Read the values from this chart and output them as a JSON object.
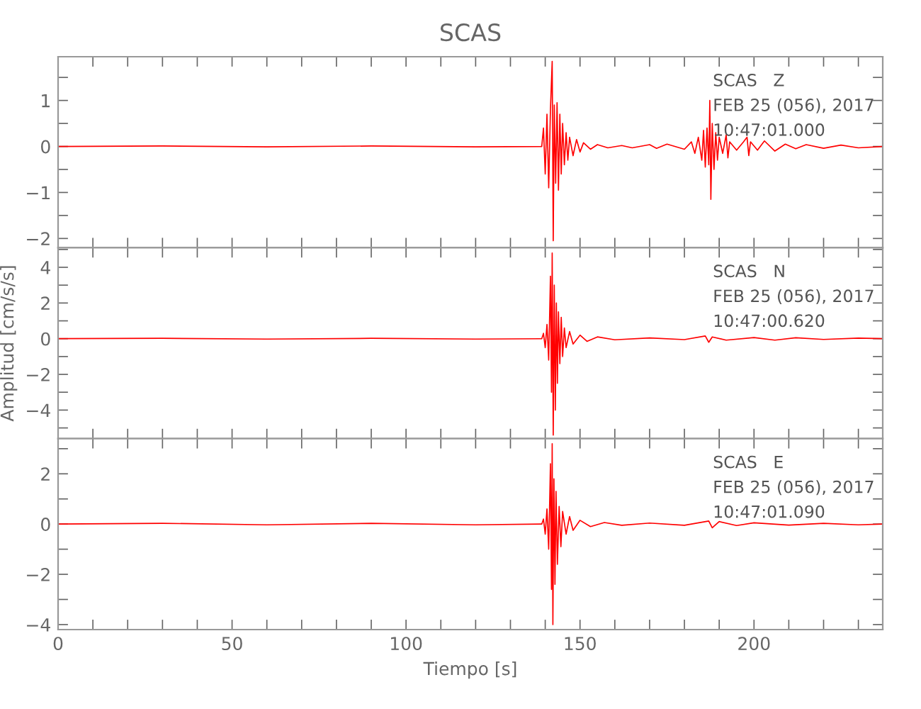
{
  "chart_data": [
    {
      "type": "line",
      "title": "SCAS",
      "tick_labels": "y",
      "xlim": [
        0,
        237
      ],
      "ylim": [
        -2.2,
        1.95
      ],
      "xticks": [
        0,
        {
          "value": 10,
          "label": null
        },
        {
          "value": 20,
          "label": null
        },
        {
          "value": 30,
          "label": null
        },
        {
          "value": 40,
          "label": null
        },
        50,
        {
          "value": 60,
          "label": null
        },
        {
          "value": 70,
          "label": null
        },
        {
          "value": 80,
          "label": null
        },
        {
          "value": 90,
          "label": null
        },
        100,
        {
          "value": 110,
          "label": null
        },
        {
          "value": 120,
          "label": null
        },
        {
          "value": 130,
          "label": null
        },
        {
          "value": 140,
          "label": null
        },
        150,
        {
          "value": 160,
          "label": null
        },
        {
          "value": 170,
          "label": null
        },
        {
          "value": 180,
          "label": null
        },
        {
          "value": 190,
          "label": null
        },
        200,
        {
          "value": 210,
          "label": null
        },
        {
          "value": 220,
          "label": null
        },
        {
          "value": 230,
          "label": null
        }
      ],
      "yticks": [
        -2,
        {
          "value": -1.5,
          "label": null
        },
        -1,
        {
          "value": -0.5,
          "label": null
        },
        0,
        {
          "value": 0.5,
          "label": null
        },
        1,
        {
          "value": 1.5,
          "label": null
        }
      ],
      "annotations": [
        "SCAS   Z",
        "FEB 25 (056), 2017",
        "10:47:01.000"
      ],
      "series": [
        {
          "color": "#ff0000",
          "x": [
            0,
            30,
            60,
            90,
            120,
            139,
            139.5,
            140,
            140.5,
            141,
            141.5,
            142,
            142.3,
            142.6,
            143,
            143.4,
            143.8,
            144.2,
            144.6,
            145,
            145.5,
            146,
            146.5,
            147,
            148,
            149,
            150,
            151,
            153,
            155,
            158,
            162,
            165,
            170,
            172,
            175,
            180,
            182,
            183,
            184,
            185,
            185.5,
            186,
            186.5,
            187,
            187.3,
            187.6,
            188,
            188.5,
            189,
            189.5,
            190,
            191,
            192,
            192.5,
            193,
            195,
            197,
            198,
            198.5,
            199,
            201,
            203,
            206,
            209,
            212,
            215,
            220,
            225,
            230,
            237
          ],
          "values": [
            0,
            0.01,
            -0.01,
            0.01,
            -0.01,
            0,
            0.4,
            -0.6,
            0.7,
            -0.9,
            0.8,
            1.85,
            -2.05,
            0.9,
            -0.8,
            0.95,
            -0.95,
            0.7,
            -0.6,
            0.5,
            -0.4,
            0.3,
            -0.3,
            0.2,
            -0.2,
            0.15,
            -0.12,
            0.08,
            -0.06,
            0.04,
            -0.03,
            0.02,
            -0.03,
            0.04,
            -0.04,
            0.05,
            -0.06,
            0.1,
            -0.15,
            0.2,
            -0.3,
            0.35,
            -0.45,
            0.4,
            -0.4,
            1.0,
            -1.15,
            0.5,
            -0.5,
            0.3,
            -0.3,
            0.2,
            -0.15,
            0.25,
            -0.25,
            0.1,
            -0.08,
            0.1,
            0.2,
            -0.2,
            0.1,
            -0.08,
            0.12,
            -0.1,
            0.05,
            -0.05,
            0.04,
            -0.04,
            0.03,
            -0.03,
            0
          ]
        }
      ]
    },
    {
      "type": "line",
      "ylabel": "Amplitud [cm/s/s]",
      "tick_labels": "y",
      "xlim": [
        0,
        237
      ],
      "ylim": [
        -5.6,
        5.1
      ],
      "xticks": [
        0,
        {
          "value": 10,
          "label": null
        },
        {
          "value": 20,
          "label": null
        },
        {
          "value": 30,
          "label": null
        },
        {
          "value": 40,
          "label": null
        },
        50,
        {
          "value": 60,
          "label": null
        },
        {
          "value": 70,
          "label": null
        },
        {
          "value": 80,
          "label": null
        },
        {
          "value": 90,
          "label": null
        },
        100,
        {
          "value": 110,
          "label": null
        },
        {
          "value": 120,
          "label": null
        },
        {
          "value": 130,
          "label": null
        },
        {
          "value": 140,
          "label": null
        },
        150,
        {
          "value": 160,
          "label": null
        },
        {
          "value": 170,
          "label": null
        },
        {
          "value": 180,
          "label": null
        },
        {
          "value": 190,
          "label": null
        },
        200,
        {
          "value": 210,
          "label": null
        },
        {
          "value": 220,
          "label": null
        },
        {
          "value": 230,
          "label": null
        }
      ],
      "yticks": [
        {
          "value": -5,
          "label": null
        },
        -4,
        {
          "value": -3,
          "label": null
        },
        -2,
        {
          "value": -1,
          "label": null
        },
        0,
        {
          "value": 1,
          "label": null
        },
        2,
        {
          "value": 3,
          "label": null
        },
        4,
        {
          "value": 5,
          "label": null
        }
      ],
      "annotations": [
        "SCAS   N",
        "FEB 25 (056), 2017",
        "10:47:00.620"
      ],
      "series": [
        {
          "color": "#ff0000",
          "x": [
            0,
            30,
            60,
            90,
            120,
            139,
            139.5,
            140,
            140.5,
            141,
            141.5,
            141.8,
            142,
            142.3,
            142.6,
            142.9,
            143.2,
            143.5,
            143.8,
            144.2,
            144.6,
            145,
            145.5,
            146,
            147,
            148,
            150,
            152,
            155,
            160,
            170,
            180,
            186,
            187,
            188,
            192,
            200,
            206,
            212,
            220,
            230,
            237
          ],
          "values": [
            0,
            0.02,
            -0.02,
            0.02,
            -0.02,
            0,
            0.3,
            -0.5,
            0.8,
            -1.2,
            3.5,
            -3.0,
            4.8,
            -5.4,
            3.0,
            -4.0,
            2.0,
            -2.5,
            1.5,
            -1.4,
            1.2,
            -1.0,
            0.6,
            -0.5,
            0.4,
            -0.3,
            0.2,
            -0.15,
            0.1,
            -0.06,
            0.04,
            -0.05,
            0.15,
            -0.2,
            0.1,
            -0.08,
            0.06,
            -0.08,
            0.05,
            -0.04,
            0.03,
            0
          ]
        }
      ]
    },
    {
      "type": "line",
      "xlabel": "Tiempo [s]",
      "xlim": [
        0,
        237
      ],
      "ylim": [
        -4.2,
        3.4
      ],
      "xticks": [
        0,
        {
          "value": 10,
          "label": null
        },
        {
          "value": 20,
          "label": null
        },
        {
          "value": 30,
          "label": null
        },
        {
          "value": 40,
          "label": null
        },
        50,
        {
          "value": 60,
          "label": null
        },
        {
          "value": 70,
          "label": null
        },
        {
          "value": 80,
          "label": null
        },
        {
          "value": 90,
          "label": null
        },
        100,
        {
          "value": 110,
          "label": null
        },
        {
          "value": 120,
          "label": null
        },
        {
          "value": 130,
          "label": null
        },
        {
          "value": 140,
          "label": null
        },
        150,
        {
          "value": 160,
          "label": null
        },
        {
          "value": 170,
          "label": null
        },
        {
          "value": 180,
          "label": null
        },
        {
          "value": 190,
          "label": null
        },
        200,
        {
          "value": 210,
          "label": null
        },
        {
          "value": 220,
          "label": null
        },
        {
          "value": 230,
          "label": null
        }
      ],
      "yticks": [
        -4,
        {
          "value": -3,
          "label": null
        },
        -2,
        {
          "value": -1,
          "label": null
        },
        0,
        {
          "value": 1,
          "label": null
        },
        2,
        {
          "value": 3,
          "label": null
        }
      ],
      "annotations": [
        "SCAS   E",
        "FEB 25 (056), 2017",
        "10:47:01.090"
      ],
      "series": [
        {
          "color": "#ff0000",
          "x": [
            0,
            30,
            60,
            90,
            120,
            139,
            139.5,
            140,
            140.5,
            141,
            141.5,
            141.8,
            142,
            142.2,
            142.5,
            142.8,
            143.1,
            143.5,
            144,
            144.5,
            145,
            146,
            147,
            148,
            150,
            153,
            157,
            162,
            170,
            180,
            187,
            188,
            190,
            195,
            200,
            210,
            220,
            230,
            237
          ],
          "values": [
            0,
            0.03,
            -0.03,
            0.03,
            -0.03,
            0,
            0.2,
            -0.4,
            0.6,
            -1.0,
            2.4,
            -2.6,
            3.2,
            -4.0,
            1.8,
            -2.4,
            1.3,
            -1.6,
            0.7,
            -0.9,
            0.5,
            -0.4,
            0.3,
            -0.25,
            0.15,
            -0.1,
            0.06,
            -0.05,
            0.04,
            -0.05,
            0.12,
            -0.15,
            0.1,
            -0.06,
            0.05,
            -0.04,
            0.03,
            -0.03,
            0
          ]
        }
      ]
    }
  ]
}
